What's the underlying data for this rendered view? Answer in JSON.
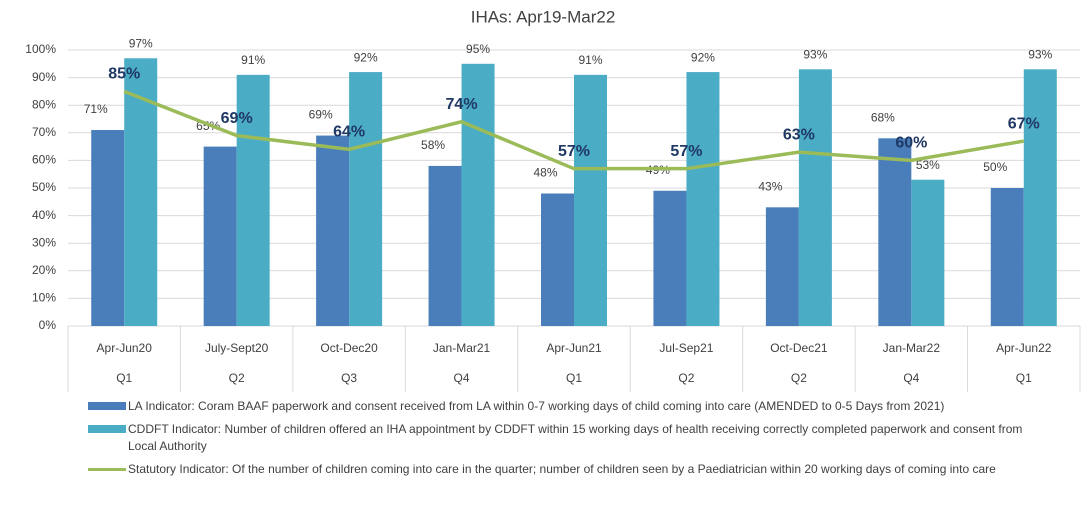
{
  "chart_data": {
    "type": "bar",
    "title": "IHAs: Apr19-Mar22",
    "categories": [
      "Apr-Jun20",
      "July-Sept20",
      "Oct-Dec20",
      "Jan-Mar21",
      "Apr-Jun21",
      "Jul-Sep21",
      "Oct-Dec21",
      "Jan-Mar22",
      "Apr-Jun22"
    ],
    "quarters": [
      "Q1",
      "Q2",
      "Q3",
      "Q4",
      "Q1",
      "Q2",
      "Q2",
      "Q4",
      "Q1"
    ],
    "series": [
      {
        "name": "LA Indicator:  Coram BAAF paperwork and consent received from LA within 0-7 working days of child coming into care (AMENDED to 0-5 Days from 2021)",
        "type": "bar",
        "color": "#4a7ebb",
        "values": [
          71,
          65,
          69,
          58,
          48,
          49,
          43,
          68,
          50
        ],
        "value_labels": [
          "71%",
          "65%",
          "69%",
          "58%",
          "48%",
          "49%",
          "43%",
          "68%",
          "50%"
        ]
      },
      {
        "name": "CDDFT Indicator: Number of children offered an IHA appointment by CDDFT within 15 working days of health receiving correctly completed paperwork and consent from Local Authority",
        "type": "bar",
        "color": "#4bacc6",
        "values": [
          97,
          91,
          92,
          95,
          91,
          92,
          93,
          53,
          93
        ],
        "value_labels": [
          "97%",
          "91%",
          "92%",
          "95%",
          "91%",
          "92%",
          "93%",
          "53%",
          "93%"
        ]
      },
      {
        "name": "Statutory Indicator:  Of the number of children coming into care in the quarter; number of children seen by a Paediatrician within 20 working days of coming into care",
        "type": "line",
        "color": "#9bbb59",
        "values": [
          85,
          69,
          64,
          74,
          57,
          57,
          63,
          60,
          67
        ],
        "value_labels": [
          "85%",
          "69%",
          "64%",
          "74%",
          "57%",
          "57%",
          "63%",
          "60%",
          "67%"
        ]
      }
    ],
    "ylim": [
      0,
      100
    ],
    "yticks": [
      {
        "value": 0,
        "label": "0%"
      },
      {
        "value": 10,
        "label": "10%"
      },
      {
        "value": 20,
        "label": "20%"
      },
      {
        "value": 30,
        "label": "30%"
      },
      {
        "value": 40,
        "label": "40%"
      },
      {
        "value": 50,
        "label": "50%"
      },
      {
        "value": 60,
        "label": "60%"
      },
      {
        "value": 70,
        "label": "70%"
      },
      {
        "value": 80,
        "label": "80%"
      },
      {
        "value": 90,
        "label": "90%"
      },
      {
        "value": 100,
        "label": "100%"
      }
    ],
    "grid": true
  }
}
